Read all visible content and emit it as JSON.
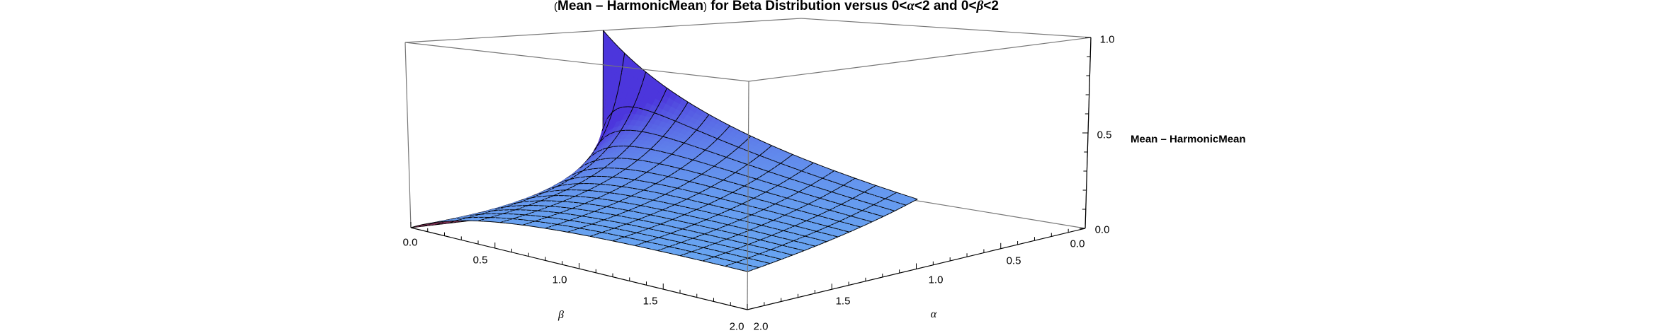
{
  "chart_data": {
    "type": "surface3d",
    "title_parts": [
      "(",
      "Mean – HarmonicMean",
      ")",
      " for Beta Distribution versus 0<",
      "α",
      "<2 and 0<",
      "β",
      "<2"
    ],
    "xlabel": "β",
    "ylabel": "α",
    "zlabel": "Mean – HarmonicMean",
    "beta_range": [
      0,
      2
    ],
    "alpha_range": [
      0,
      2
    ],
    "z_range": [
      0,
      1
    ],
    "beta_ticks": [
      "0.0",
      "0.5",
      "1.0",
      "1.5",
      "2.0"
    ],
    "alpha_ticks": [
      "0.0",
      "0.5",
      "1.0",
      "1.5",
      "2.0"
    ],
    "z_ticks": [
      "0.0",
      "0.5",
      "1.0"
    ],
    "surface_domain": {
      "alpha": [
        1,
        2
      ],
      "beta": [
        0,
        2
      ]
    },
    "mesh_lines": 15,
    "sample_alpha": [
      1,
      1.25,
      1.5,
      1.75,
      2
    ],
    "sample_beta": [
      0,
      0.5,
      1,
      1.5,
      2
    ],
    "sample_z": [
      [
        1.0,
        0.667,
        0.5,
        0.4,
        0.333
      ],
      [
        0.0,
        0.381,
        0.356,
        0.312,
        0.274
      ],
      [
        0.0,
        0.25,
        0.267,
        0.25,
        0.229
      ],
      [
        0.0,
        0.178,
        0.208,
        0.205,
        0.194
      ],
      [
        0.0,
        0.133,
        0.167,
        0.171,
        0.167
      ]
    ],
    "colors": {
      "flat": "#6aaaf2",
      "steep": "#4c36dc",
      "underside": "#7a2f52",
      "mesh": "#000000",
      "box": "#777777"
    }
  }
}
